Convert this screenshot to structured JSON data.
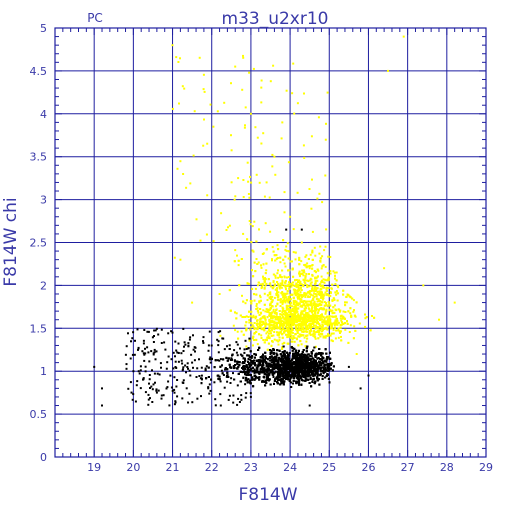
{
  "chart_data": {
    "type": "scatter",
    "title": "m33_u2xr10",
    "corner_label": "PC",
    "xlabel": "F814W",
    "ylabel": "F814W  chi",
    "xlim": [
      18,
      29
    ],
    "ylim": [
      0,
      5
    ],
    "x_ticks": [
      19,
      20,
      21,
      22,
      23,
      24,
      25,
      26,
      27,
      28,
      29
    ],
    "y_ticks": [
      0,
      0.5,
      1,
      1.5,
      2,
      2.5,
      3,
      3.5,
      4,
      4.5,
      5
    ],
    "x_minor_step": 0.2,
    "y_minor_step": 0.1,
    "grid": true,
    "colors": {
      "axes": "#1e1ea0",
      "text": "#3a3aa8",
      "yellow_points": "#ffff00",
      "black_points": "#000000"
    },
    "series": [
      {
        "color": "yellow",
        "description_points": [
          [
            21.0,
            4.8
          ],
          [
            22.6,
            4.55
          ],
          [
            23.0,
            4.0
          ],
          [
            23.6,
            3.5
          ],
          [
            23.4,
            3.2
          ],
          [
            24.0,
            2.8
          ],
          [
            24.3,
            2.5
          ],
          [
            24.5,
            2.2
          ],
          [
            24.2,
            1.9
          ],
          [
            24.6,
            1.7
          ],
          [
            24.9,
            1.5
          ],
          [
            25.3,
            1.4
          ],
          [
            25.7,
            1.2
          ],
          [
            22.2,
            1.9
          ],
          [
            21.5,
            1.8
          ],
          [
            21.2,
            2.3
          ],
          [
            22.8,
            2.6
          ],
          [
            23.8,
            3.9
          ],
          [
            26.4,
            2.2
          ],
          [
            27.4,
            2.0
          ],
          [
            27.8,
            1.6
          ],
          [
            28.2,
            1.8
          ],
          [
            26.9,
            4.9
          ],
          [
            26.5,
            4.5
          ]
        ],
        "cluster": {
          "x_peak": 24.2,
          "y_peak": 1.65,
          "x_range": [
            20.3,
            28.4
          ],
          "y_range": [
            1.2,
            4.9
          ]
        }
      },
      {
        "color": "black",
        "description_points": [
          [
            19.2,
            0.6
          ],
          [
            19.2,
            0.8
          ],
          [
            19.0,
            1.05
          ],
          [
            20.0,
            1.0
          ],
          [
            20.6,
            0.75
          ],
          [
            21.5,
            1.1
          ],
          [
            22.5,
            1.15
          ],
          [
            23.5,
            1.2
          ],
          [
            24.2,
            1.1
          ],
          [
            24.8,
            1.0
          ],
          [
            25.5,
            1.05
          ],
          [
            26.0,
            0.95
          ],
          [
            25.8,
            0.8
          ],
          [
            24.5,
            0.6
          ],
          [
            23.0,
            0.7
          ],
          [
            22.0,
            1.3
          ],
          [
            21.0,
            1.45
          ],
          [
            23.9,
            2.65
          ],
          [
            24.3,
            2.65
          ]
        ],
        "cluster": {
          "x_peak": 24.5,
          "y_peak": 1.05,
          "x_range": [
            18.9,
            26.2
          ],
          "y_range": [
            0.55,
            1.6
          ]
        }
      }
    ]
  }
}
